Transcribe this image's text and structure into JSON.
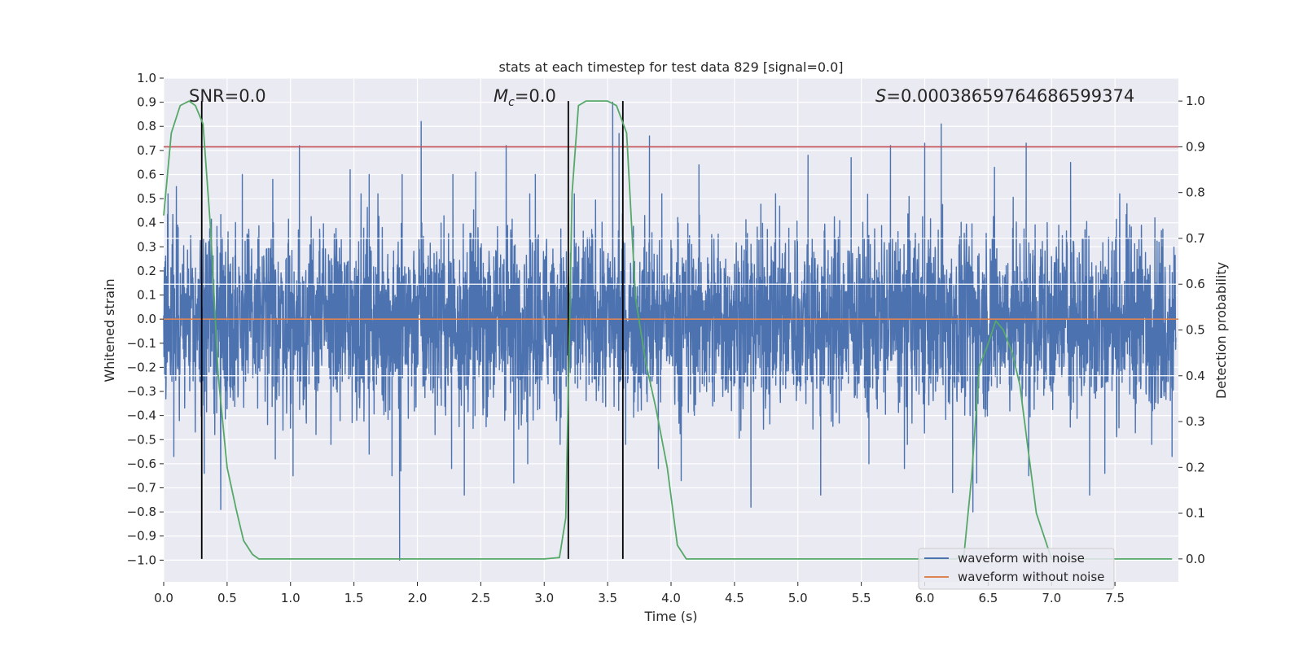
{
  "chart_data": {
    "type": "line",
    "title": "stats at each timestep for test data 829 [signal=0.0]",
    "xlabel": "Time (s)",
    "ylabel": "Whitened strain",
    "y2label": "Detection probability",
    "xlim": [
      0.0,
      8.0
    ],
    "ylim": [
      -1.09,
      1.0
    ],
    "y2lim": [
      -0.05,
      1.05
    ],
    "xticks": [
      "0.0",
      "0.5",
      "1.0",
      "1.5",
      "2.0",
      "2.5",
      "3.0",
      "3.5",
      "4.0",
      "4.5",
      "5.0",
      "5.5",
      "6.0",
      "6.5",
      "7.0",
      "7.5"
    ],
    "xtick_values": [
      0.0,
      0.5,
      1.0,
      1.5,
      2.0,
      2.5,
      3.0,
      3.5,
      4.0,
      4.5,
      5.0,
      5.5,
      6.0,
      6.5,
      7.0,
      7.5
    ],
    "yticks": [
      "1.0",
      "0.9",
      "0.8",
      "0.7",
      "0.6",
      "0.5",
      "0.4",
      "0.3",
      "0.2",
      "0.1",
      "0.0",
      "−0.1",
      "−0.2",
      "−0.3",
      "−0.4",
      "−0.5",
      "−0.6",
      "−0.7",
      "−0.8",
      "−0.9",
      "−1.0"
    ],
    "ytick_values": [
      1.0,
      0.9,
      0.8,
      0.7,
      0.6,
      0.5,
      0.4,
      0.3,
      0.2,
      0.1,
      0.0,
      -0.1,
      -0.2,
      -0.3,
      -0.4,
      -0.5,
      -0.6,
      -0.7,
      -0.8,
      -0.9,
      -1.0
    ],
    "y2ticks": [
      "1.0",
      "0.9",
      "0.8",
      "0.7",
      "0.6",
      "0.5",
      "0.4",
      "0.3",
      "0.2",
      "0.1",
      "0.0"
    ],
    "y2tick_values": [
      1.0,
      0.9,
      0.8,
      0.7,
      0.6,
      0.5,
      0.4,
      0.3,
      0.2,
      0.1,
      0.0
    ],
    "annotations": {
      "snr": "SNR=0.0",
      "mc_symbol": "M",
      "mc_sub": "c",
      "mc_value": "=0.0",
      "s_symbol": "S",
      "s_value": "=0.00038659764686599374"
    },
    "threshold": {
      "value": 0.9,
      "axis": "y2",
      "color": "#c44e52"
    },
    "vertical_lines": [
      0.3,
      3.19,
      3.62
    ],
    "waveform_with_noise": {
      "name": "waveform with noise",
      "color": "#4c72b0",
      "typical_envelope": [
        -0.42,
        0.42
      ],
      "spikes": [
        {
          "x": 0.08,
          "y": -0.57
        },
        {
          "x": 0.1,
          "y": 0.55
        },
        {
          "x": 0.3,
          "y": 0.56
        },
        {
          "x": 0.32,
          "y": -0.64
        },
        {
          "x": 0.45,
          "y": -0.79
        },
        {
          "x": 0.62,
          "y": 0.6
        },
        {
          "x": 0.86,
          "y": 0.58
        },
        {
          "x": 0.88,
          "y": -0.58
        },
        {
          "x": 1.02,
          "y": -0.65
        },
        {
          "x": 1.07,
          "y": 0.72
        },
        {
          "x": 1.47,
          "y": 0.62
        },
        {
          "x": 1.62,
          "y": -0.56
        },
        {
          "x": 1.62,
          "y": 0.6
        },
        {
          "x": 1.8,
          "y": -0.65
        },
        {
          "x": 1.86,
          "y": -1.0
        },
        {
          "x": 1.87,
          "y": -0.63
        },
        {
          "x": 1.88,
          "y": 0.6
        },
        {
          "x": 2.03,
          "y": 0.82
        },
        {
          "x": 2.27,
          "y": -0.62
        },
        {
          "x": 2.28,
          "y": 0.6
        },
        {
          "x": 2.37,
          "y": -0.73
        },
        {
          "x": 2.46,
          "y": 0.61
        },
        {
          "x": 2.7,
          "y": 0.72
        },
        {
          "x": 2.76,
          "y": -0.68
        },
        {
          "x": 2.87,
          "y": -0.6
        },
        {
          "x": 2.93,
          "y": 0.6
        },
        {
          "x": 3.54,
          "y": 0.9
        },
        {
          "x": 3.59,
          "y": 0.77
        },
        {
          "x": 3.83,
          "y": 0.76
        },
        {
          "x": 3.9,
          "y": -0.62
        },
        {
          "x": 4.08,
          "y": -0.67
        },
        {
          "x": 4.22,
          "y": 0.64
        },
        {
          "x": 4.63,
          "y": -0.78
        },
        {
          "x": 5.08,
          "y": 0.68
        },
        {
          "x": 5.18,
          "y": -0.73
        },
        {
          "x": 5.42,
          "y": 0.67
        },
        {
          "x": 5.56,
          "y": -0.6
        },
        {
          "x": 5.73,
          "y": 0.72
        },
        {
          "x": 5.84,
          "y": -0.62
        },
        {
          "x": 6.0,
          "y": 0.73
        },
        {
          "x": 6.13,
          "y": 0.81
        },
        {
          "x": 6.22,
          "y": -0.72
        },
        {
          "x": 6.38,
          "y": -0.8
        },
        {
          "x": 6.41,
          "y": -0.68
        },
        {
          "x": 6.55,
          "y": 0.63
        },
        {
          "x": 6.8,
          "y": 0.73
        },
        {
          "x": 6.82,
          "y": -0.65
        },
        {
          "x": 7.15,
          "y": 0.65
        },
        {
          "x": 7.3,
          "y": -0.73
        },
        {
          "x": 7.42,
          "y": -0.64
        },
        {
          "x": 7.95,
          "y": -0.57
        }
      ]
    },
    "waveform_without_noise": {
      "name": "waveform without noise",
      "color": "#dd8452",
      "y": 0.0
    },
    "detection_probability": {
      "name": "detection probability",
      "color": "#55a868",
      "axis": "y2",
      "points": [
        [
          0.0,
          0.75
        ],
        [
          0.06,
          0.93
        ],
        [
          0.13,
          0.99
        ],
        [
          0.2,
          1.0
        ],
        [
          0.25,
          0.99
        ],
        [
          0.31,
          0.95
        ],
        [
          0.37,
          0.72
        ],
        [
          0.43,
          0.4
        ],
        [
          0.5,
          0.2
        ],
        [
          0.57,
          0.11
        ],
        [
          0.63,
          0.04
        ],
        [
          0.7,
          0.01
        ],
        [
          0.75,
          0.0
        ],
        [
          1.0,
          0.0
        ],
        [
          2.0,
          0.0
        ],
        [
          3.0,
          0.0
        ],
        [
          3.12,
          0.003
        ],
        [
          3.17,
          0.09
        ],
        [
          3.22,
          0.8
        ],
        [
          3.27,
          0.99
        ],
        [
          3.33,
          1.0
        ],
        [
          3.5,
          1.0
        ],
        [
          3.57,
          0.99
        ],
        [
          3.65,
          0.93
        ],
        [
          3.72,
          0.57
        ],
        [
          3.8,
          0.43
        ],
        [
          3.88,
          0.33
        ],
        [
          3.97,
          0.2
        ],
        [
          4.05,
          0.03
        ],
        [
          4.12,
          0.0
        ],
        [
          5.0,
          0.0
        ],
        [
          6.0,
          0.0
        ],
        [
          6.25,
          0.0
        ],
        [
          6.31,
          0.01
        ],
        [
          6.37,
          0.18
        ],
        [
          6.43,
          0.42
        ],
        [
          6.5,
          0.47
        ],
        [
          6.56,
          0.52
        ],
        [
          6.62,
          0.5
        ],
        [
          6.69,
          0.45
        ],
        [
          6.75,
          0.38
        ],
        [
          6.81,
          0.25
        ],
        [
          6.88,
          0.1
        ],
        [
          6.94,
          0.05
        ],
        [
          7.0,
          0.0
        ],
        [
          7.5,
          0.0
        ],
        [
          7.95,
          0.0
        ]
      ]
    },
    "legend": {
      "location": "lower-right",
      "entries": [
        {
          "label": "waveform with noise",
          "color": "#4c72b0"
        },
        {
          "label": "waveform without noise",
          "color": "#dd8452"
        }
      ]
    },
    "grid": true
  }
}
